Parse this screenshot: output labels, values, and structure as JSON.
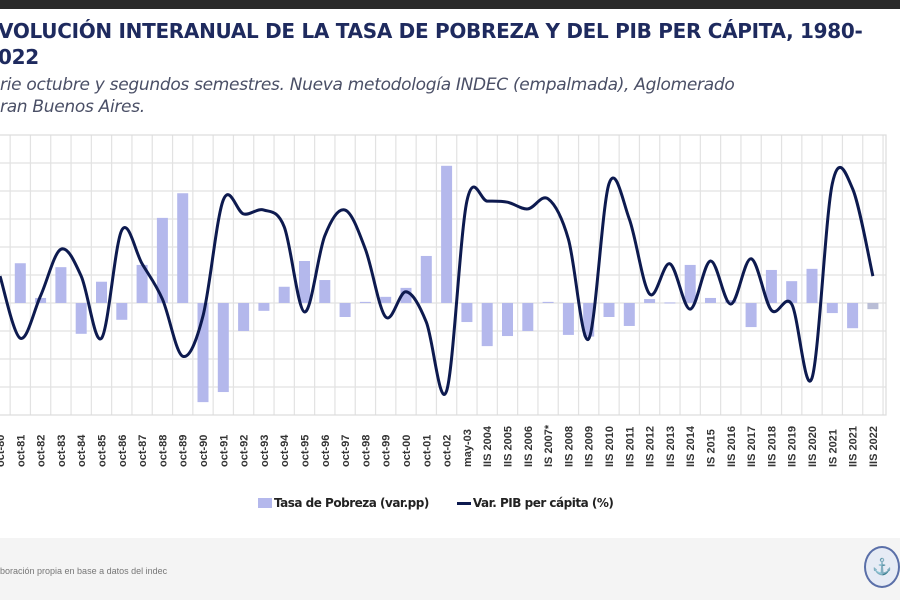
{
  "header": {
    "title_line1": "VOLUCIÓN INTERANUAL DE LA TASA DE POBREZA Y DEL PIB PER CÁPITA, 1980-",
    "title_line2": "022",
    "subtitle_line1": "rie octubre y segundos semestres. Nueva metodología INDEC (empalmada), Aglomerado",
    "subtitle_line2": "ran Buenos Aires."
  },
  "footer": {
    "source": "boración propia en base a datos del indec",
    "seal_icon": "institutional-seal-icon"
  },
  "chart_data": {
    "type": "bar+line",
    "categories": [
      "oct-80",
      "oct-81",
      "oct-82",
      "oct-83",
      "oct-84",
      "oct-85",
      "oct-86",
      "oct-87",
      "oct-88",
      "oct-89",
      "oct-90",
      "oct-91",
      "oct-92",
      "oct-93",
      "oct-94",
      "oct-95",
      "oct-96",
      "oct-97",
      "oct-98",
      "oct-99",
      "oct-00",
      "oct-01",
      "oct-02",
      "may-03",
      "IIS 2004",
      "IIS 2005",
      "IIS 2006",
      "IS 2007*",
      "IIS 2008",
      "IIS 2009",
      "IIS 2010",
      "IIS 2011",
      "IIS 2012",
      "IIS 2013",
      "IIS 2014",
      "IS 2015",
      "IIS 2016",
      "IIS 2017",
      "IIS 2018",
      "IIS 2019",
      "IIS 2020",
      "IS 2021",
      "IIS 2021",
      "IIS 2022"
    ],
    "series": [
      {
        "name": "Tasa de Pobreza (var.pp)",
        "type": "bar",
        "color": "#b4b8ec",
        "values": [
          null,
          7.1,
          0.9,
          6.4,
          -5.5,
          3.8,
          -3.0,
          6.8,
          15.2,
          19.6,
          -17.7,
          -15.9,
          -5.0,
          -1.4,
          2.9,
          7.5,
          4.1,
          -2.5,
          0.2,
          1.1,
          2.7,
          8.4,
          24.5,
          -3.4,
          -7.7,
          -5.9,
          -5.0,
          0.2,
          -5.7,
          -6.0,
          -2.5,
          -4.1,
          0.7,
          0.1,
          6.8,
          0.9,
          0.5,
          -4.3,
          5.9,
          3.9,
          6.1,
          -1.8,
          -4.5,
          -1.1
        ]
      },
      {
        "name": "Var. PIB per cápita (%)",
        "type": "line",
        "color": "#0d1a4f",
        "values": [
          4.8,
          -6.3,
          1.3,
          9.6,
          4.8,
          -6.3,
          13.0,
          7.0,
          0.7,
          -9.5,
          -2.3,
          18.4,
          15.9,
          16.6,
          13.6,
          -1.6,
          12.0,
          16.6,
          9.6,
          -2.5,
          2.0,
          -3.4,
          -15.7,
          18.2,
          18.2,
          18.0,
          16.8,
          18.6,
          11.4,
          -6.4,
          21.3,
          15.0,
          1.6,
          7.0,
          -1.1,
          7.5,
          -0.2,
          7.9,
          -1.3,
          -0.2,
          -13.4,
          21.3,
          20.4,
          4.8
        ]
      }
    ],
    "ylim": [
      -20,
      30
    ],
    "grid": true,
    "legend": "bottom-center"
  }
}
